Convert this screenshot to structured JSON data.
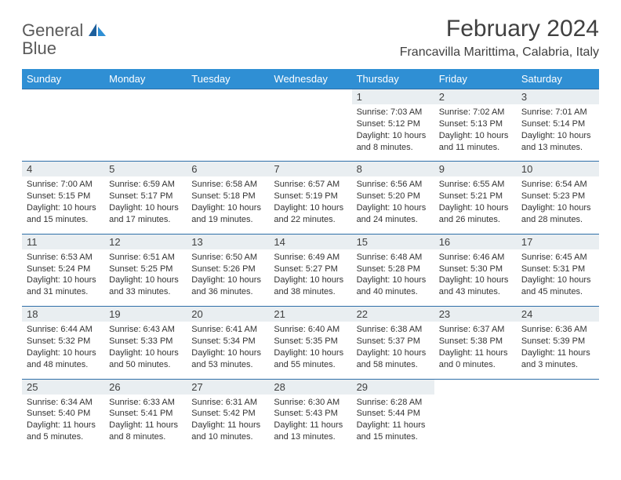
{
  "logo": {
    "general": "General",
    "blue": "Blue"
  },
  "title": "February 2024",
  "location": "Francavilla Marittima, Calabria, Italy",
  "colors": {
    "header_bg": "#2f8fd4",
    "header_text": "#ffffff",
    "border": "#2f6fa8",
    "daynum_bg": "#e9eef1",
    "text": "#333333",
    "logo_gray": "#5a5a5a",
    "logo_blue": "#2b7bbf"
  },
  "weekdays": [
    "Sunday",
    "Monday",
    "Tuesday",
    "Wednesday",
    "Thursday",
    "Friday",
    "Saturday"
  ],
  "weeks": [
    [
      null,
      null,
      null,
      null,
      {
        "n": "1",
        "sr": "Sunrise: 7:03 AM",
        "ss": "Sunset: 5:12 PM",
        "dl": "Daylight: 10 hours and 8 minutes."
      },
      {
        "n": "2",
        "sr": "Sunrise: 7:02 AM",
        "ss": "Sunset: 5:13 PM",
        "dl": "Daylight: 10 hours and 11 minutes."
      },
      {
        "n": "3",
        "sr": "Sunrise: 7:01 AM",
        "ss": "Sunset: 5:14 PM",
        "dl": "Daylight: 10 hours and 13 minutes."
      }
    ],
    [
      {
        "n": "4",
        "sr": "Sunrise: 7:00 AM",
        "ss": "Sunset: 5:15 PM",
        "dl": "Daylight: 10 hours and 15 minutes."
      },
      {
        "n": "5",
        "sr": "Sunrise: 6:59 AM",
        "ss": "Sunset: 5:17 PM",
        "dl": "Daylight: 10 hours and 17 minutes."
      },
      {
        "n": "6",
        "sr": "Sunrise: 6:58 AM",
        "ss": "Sunset: 5:18 PM",
        "dl": "Daylight: 10 hours and 19 minutes."
      },
      {
        "n": "7",
        "sr": "Sunrise: 6:57 AM",
        "ss": "Sunset: 5:19 PM",
        "dl": "Daylight: 10 hours and 22 minutes."
      },
      {
        "n": "8",
        "sr": "Sunrise: 6:56 AM",
        "ss": "Sunset: 5:20 PM",
        "dl": "Daylight: 10 hours and 24 minutes."
      },
      {
        "n": "9",
        "sr": "Sunrise: 6:55 AM",
        "ss": "Sunset: 5:21 PM",
        "dl": "Daylight: 10 hours and 26 minutes."
      },
      {
        "n": "10",
        "sr": "Sunrise: 6:54 AM",
        "ss": "Sunset: 5:23 PM",
        "dl": "Daylight: 10 hours and 28 minutes."
      }
    ],
    [
      {
        "n": "11",
        "sr": "Sunrise: 6:53 AM",
        "ss": "Sunset: 5:24 PM",
        "dl": "Daylight: 10 hours and 31 minutes."
      },
      {
        "n": "12",
        "sr": "Sunrise: 6:51 AM",
        "ss": "Sunset: 5:25 PM",
        "dl": "Daylight: 10 hours and 33 minutes."
      },
      {
        "n": "13",
        "sr": "Sunrise: 6:50 AM",
        "ss": "Sunset: 5:26 PM",
        "dl": "Daylight: 10 hours and 36 minutes."
      },
      {
        "n": "14",
        "sr": "Sunrise: 6:49 AM",
        "ss": "Sunset: 5:27 PM",
        "dl": "Daylight: 10 hours and 38 minutes."
      },
      {
        "n": "15",
        "sr": "Sunrise: 6:48 AM",
        "ss": "Sunset: 5:28 PM",
        "dl": "Daylight: 10 hours and 40 minutes."
      },
      {
        "n": "16",
        "sr": "Sunrise: 6:46 AM",
        "ss": "Sunset: 5:30 PM",
        "dl": "Daylight: 10 hours and 43 minutes."
      },
      {
        "n": "17",
        "sr": "Sunrise: 6:45 AM",
        "ss": "Sunset: 5:31 PM",
        "dl": "Daylight: 10 hours and 45 minutes."
      }
    ],
    [
      {
        "n": "18",
        "sr": "Sunrise: 6:44 AM",
        "ss": "Sunset: 5:32 PM",
        "dl": "Daylight: 10 hours and 48 minutes."
      },
      {
        "n": "19",
        "sr": "Sunrise: 6:43 AM",
        "ss": "Sunset: 5:33 PM",
        "dl": "Daylight: 10 hours and 50 minutes."
      },
      {
        "n": "20",
        "sr": "Sunrise: 6:41 AM",
        "ss": "Sunset: 5:34 PM",
        "dl": "Daylight: 10 hours and 53 minutes."
      },
      {
        "n": "21",
        "sr": "Sunrise: 6:40 AM",
        "ss": "Sunset: 5:35 PM",
        "dl": "Daylight: 10 hours and 55 minutes."
      },
      {
        "n": "22",
        "sr": "Sunrise: 6:38 AM",
        "ss": "Sunset: 5:37 PM",
        "dl": "Daylight: 10 hours and 58 minutes."
      },
      {
        "n": "23",
        "sr": "Sunrise: 6:37 AM",
        "ss": "Sunset: 5:38 PM",
        "dl": "Daylight: 11 hours and 0 minutes."
      },
      {
        "n": "24",
        "sr": "Sunrise: 6:36 AM",
        "ss": "Sunset: 5:39 PM",
        "dl": "Daylight: 11 hours and 3 minutes."
      }
    ],
    [
      {
        "n": "25",
        "sr": "Sunrise: 6:34 AM",
        "ss": "Sunset: 5:40 PM",
        "dl": "Daylight: 11 hours and 5 minutes."
      },
      {
        "n": "26",
        "sr": "Sunrise: 6:33 AM",
        "ss": "Sunset: 5:41 PM",
        "dl": "Daylight: 11 hours and 8 minutes."
      },
      {
        "n": "27",
        "sr": "Sunrise: 6:31 AM",
        "ss": "Sunset: 5:42 PM",
        "dl": "Daylight: 11 hours and 10 minutes."
      },
      {
        "n": "28",
        "sr": "Sunrise: 6:30 AM",
        "ss": "Sunset: 5:43 PM",
        "dl": "Daylight: 11 hours and 13 minutes."
      },
      {
        "n": "29",
        "sr": "Sunrise: 6:28 AM",
        "ss": "Sunset: 5:44 PM",
        "dl": "Daylight: 11 hours and 15 minutes."
      },
      null,
      null
    ]
  ]
}
